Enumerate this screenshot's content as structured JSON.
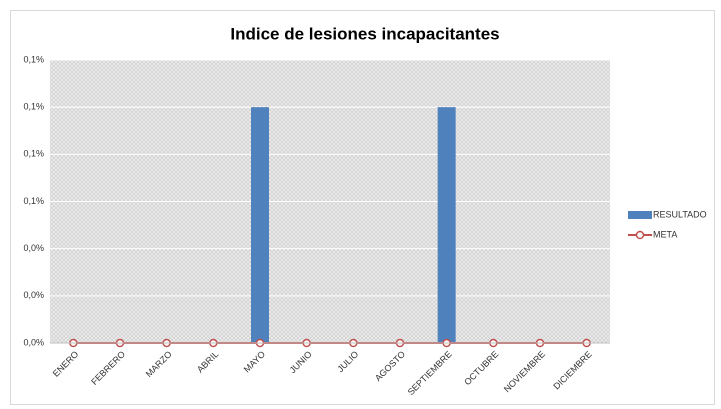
{
  "chart_data": {
    "type": "bar",
    "title": "Indice de lesiones incapacitantes",
    "categories": [
      "ENERO",
      "FEBRERO",
      "MARZO",
      "ABRIL",
      "MAYO",
      "JUNIO",
      "JULIO",
      "AGOSTO",
      "SEPTIEMBRE",
      "OCTUBRE",
      "NOVIEMBRE",
      "DICIEMBRE"
    ],
    "series": [
      {
        "name": "RESULTADO",
        "type": "bar",
        "color": "#4f81bd",
        "values": [
          0,
          0,
          0,
          0,
          0.1,
          0,
          0,
          0,
          0.1,
          0,
          0,
          0
        ]
      },
      {
        "name": "META",
        "type": "line",
        "color": "#c0504d",
        "values": [
          0,
          0,
          0,
          0,
          0,
          0,
          0,
          0,
          0,
          0,
          0,
          0
        ]
      }
    ],
    "ylim": [
      0,
      0.12
    ],
    "yticks": [
      {
        "value": 0,
        "label": "0,0%"
      },
      {
        "value": 0.02,
        "label": "0,0%"
      },
      {
        "value": 0.04,
        "label": "0,0%"
      },
      {
        "value": 0.06,
        "label": "0,1%"
      },
      {
        "value": 0.08,
        "label": "0,1%"
      },
      {
        "value": 0.1,
        "label": "0,1%"
      },
      {
        "value": 0.12,
        "label": "0,1%"
      }
    ],
    "grid": true,
    "legend": "right"
  }
}
